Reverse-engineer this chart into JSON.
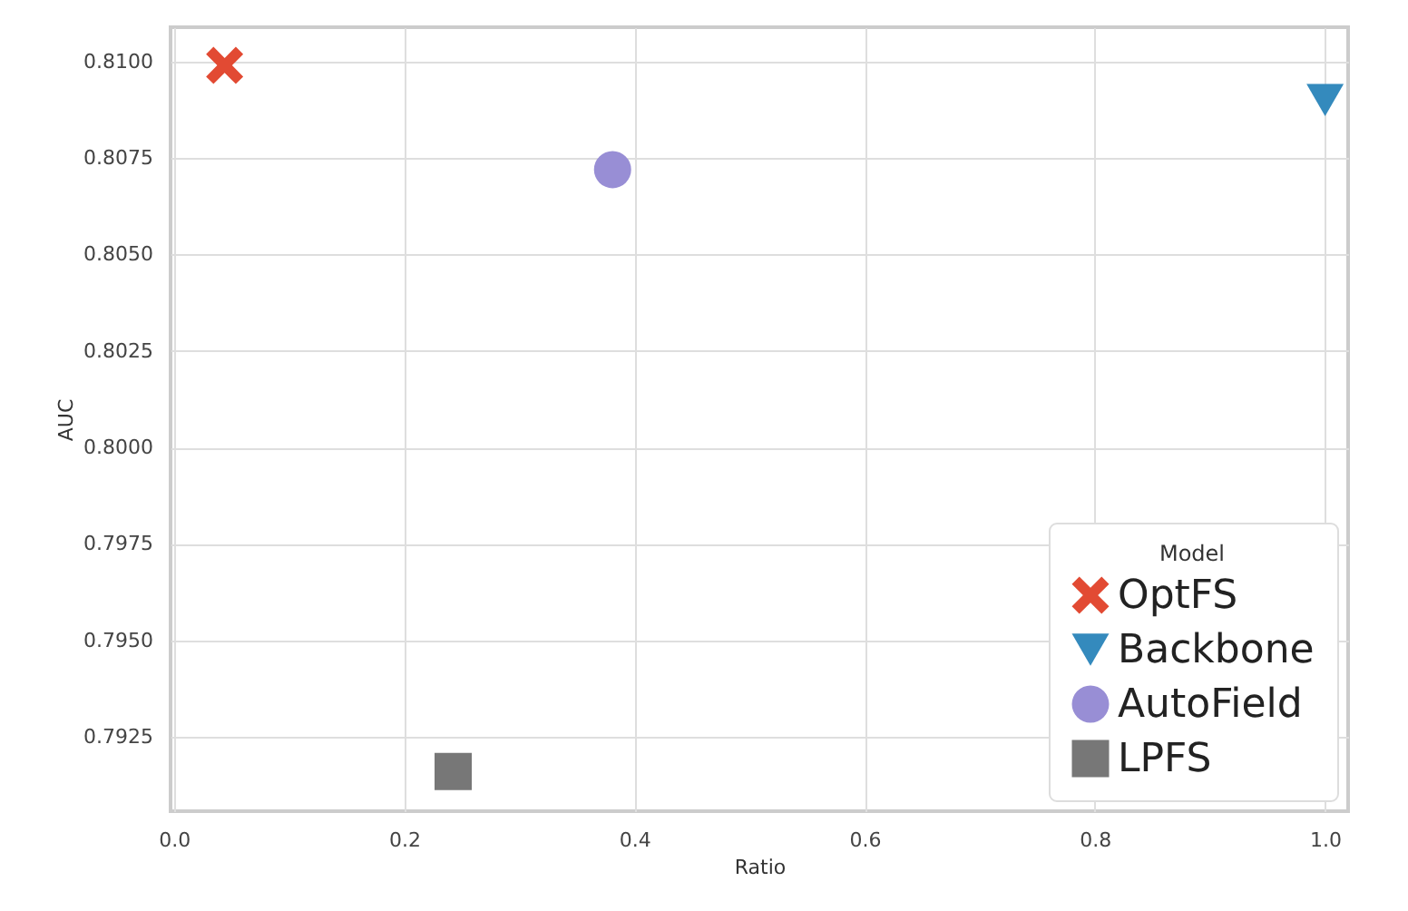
{
  "chart_data": {
    "type": "scatter",
    "xlabel": "Ratio",
    "ylabel": "AUC",
    "legend_title": "Model",
    "xlim": [
      -0.003,
      1.02
    ],
    "xticks": [
      {
        "value": 0,
        "label": "0.0"
      },
      0.2,
      0.4,
      0.6,
      0.8,
      {
        "value": 1,
        "label": "1.0"
      }
    ],
    "ylim": [
      0.79057,
      0.81089
    ],
    "yticks": [
      {
        "value": 0.7925,
        "label": "0.7925"
      },
      {
        "value": 0.795,
        "label": "0.7950"
      },
      {
        "value": 0.7975,
        "label": "0.7975"
      },
      {
        "value": 0.8,
        "label": "0.8000"
      },
      {
        "value": 0.8025,
        "label": "0.8025"
      },
      {
        "value": 0.805,
        "label": "0.8050"
      },
      {
        "value": 0.8075,
        "label": "0.8075"
      },
      {
        "value": 0.81,
        "label": "0.8100"
      }
    ],
    "grid": true,
    "legend": "bottom right",
    "series": [
      {
        "name": "OptFS",
        "color": "#e24a33",
        "marker": "cross",
        "x": [
          0.044
        ],
        "values": [
          0.8099
        ]
      },
      {
        "name": "Backbone",
        "color": "#348abd",
        "marker": "triangle",
        "x": [
          1.0
        ],
        "values": [
          0.809
        ]
      },
      {
        "name": "AutoField",
        "color": "#988ed5",
        "marker": "circle",
        "x": [
          0.381
        ],
        "values": [
          0.8072
        ]
      },
      {
        "name": "LPFS",
        "color": "#777777",
        "marker": "square",
        "x": [
          0.2425
        ],
        "values": [
          0.7916
        ]
      }
    ]
  }
}
